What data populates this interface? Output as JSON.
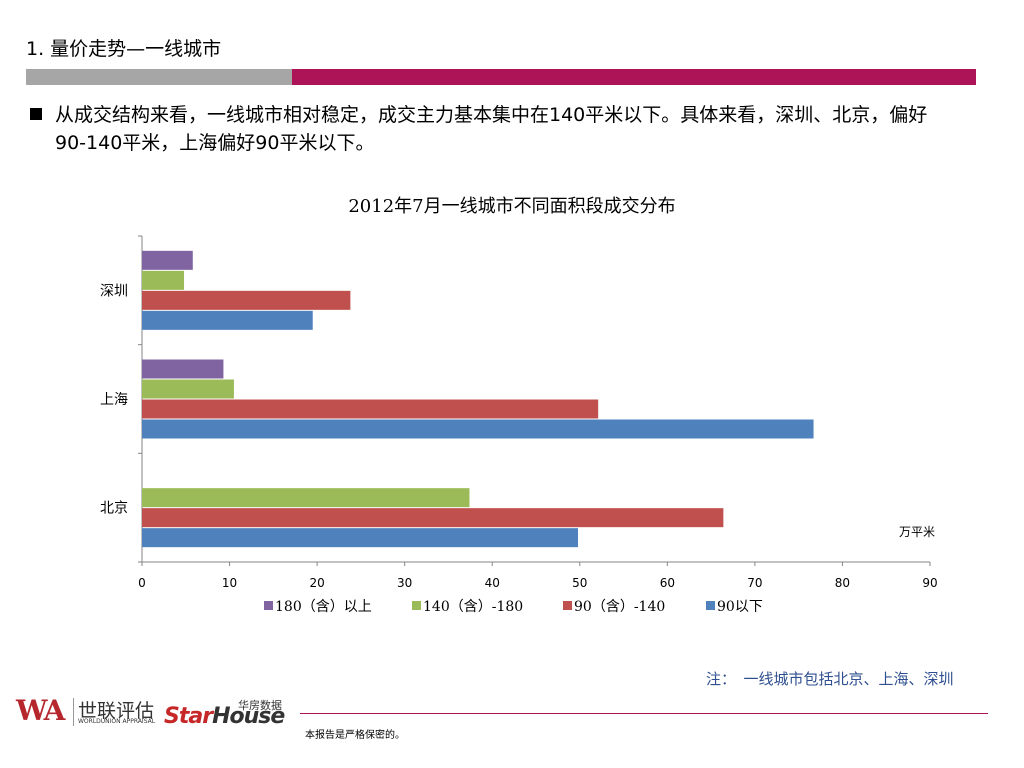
{
  "header": {
    "title": "1. 量价走势—一线城市",
    "bullet": "从成交结构来看，一线城市相对稳定，成交主力基本集中在140平米以下。具体来看，深圳、北京，偏好90-140平米，上海偏好90平米以下。"
  },
  "chart_data": {
    "type": "bar",
    "orientation": "horizontal",
    "title": "2012年7月一线城市不同面积段成交分布",
    "categories": [
      "北京",
      "上海",
      "深圳"
    ],
    "series": [
      {
        "name": "90以下",
        "color": "#4f81bd",
        "values": [
          49.8,
          76.7,
          19.5
        ]
      },
      {
        "name": "90（含）-140",
        "color": "#c0504d",
        "values": [
          66.4,
          52.1,
          23.8
        ]
      },
      {
        "name": "140（含）-180",
        "color": "#9bbb59",
        "values": [
          37.4,
          10.5,
          4.8
        ]
      },
      {
        "name": "180（含）以上",
        "color": "#8064a2",
        "values": [
          0,
          9.3,
          5.8
        ]
      }
    ],
    "xlim": [
      0,
      90
    ],
    "xticks": [
      0,
      10,
      20,
      30,
      40,
      50,
      60,
      70,
      80,
      90
    ],
    "unit_label": "万平米",
    "legend_position": "bottom",
    "grid": false
  },
  "note": "注：　一线城市包括北京、上海、深圳",
  "footer": {
    "confidential": "本报告是严格保密的。",
    "logo1_letters": "WA",
    "logo1_cn": "世联评估",
    "logo1_en": "WORLDUNION APPRAISAL",
    "logo2_cn": "华房数据",
    "logo2_star": "Star",
    "logo2_house": "House"
  }
}
